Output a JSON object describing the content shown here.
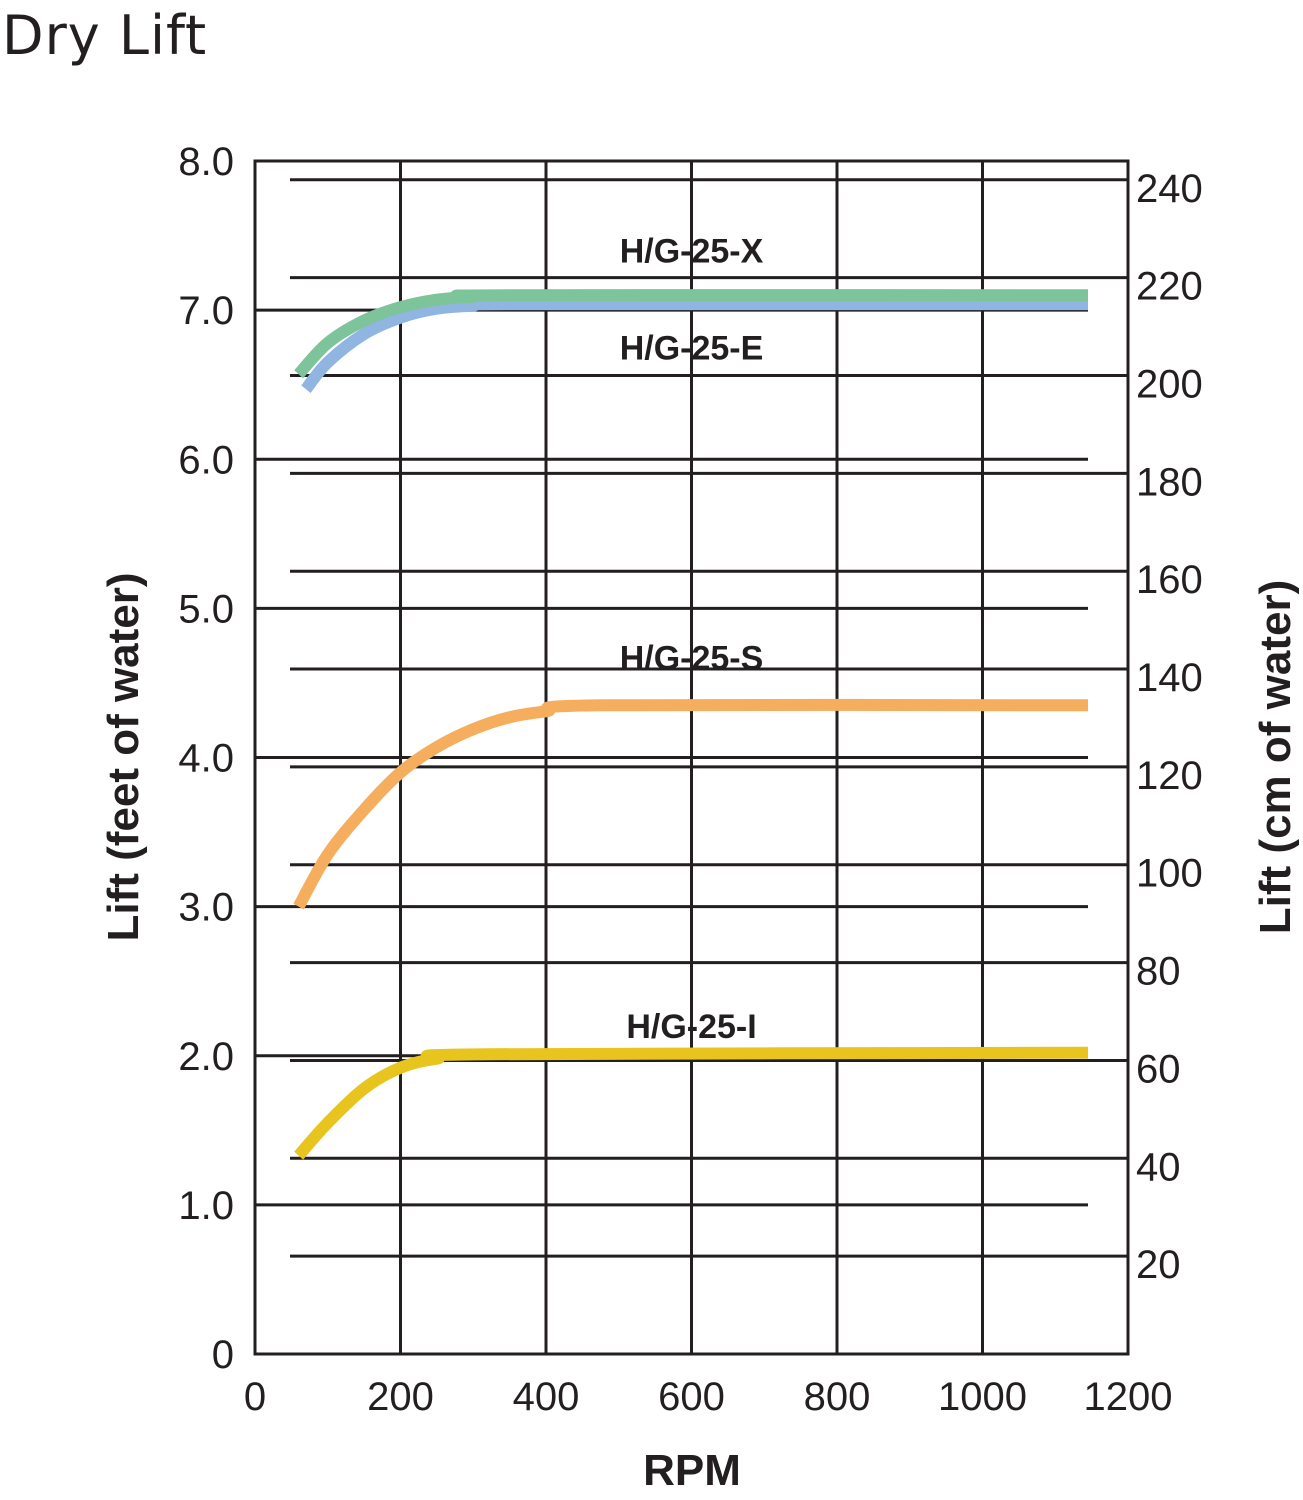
{
  "chart_data": {
    "type": "line",
    "title": "Dry Lift",
    "xlabel": "RPM",
    "ylabel": "Lift (feet of water)",
    "y2label": "Lift (cm of water)",
    "xlim": [
      0,
      1200
    ],
    "ylim": [
      0,
      8
    ],
    "xticks": [
      "0",
      "200",
      "400",
      "600",
      "800",
      "1000",
      "1200"
    ],
    "yticks": [
      "0",
      "1.0",
      "2.0",
      "3.0",
      "4.0",
      "5.0",
      "6.0",
      "7.0",
      "8.0"
    ],
    "y2ticks": [
      "20",
      "40",
      "60",
      "80",
      "100",
      "120",
      "140",
      "160",
      "180",
      "200",
      "220",
      "240"
    ],
    "grid": true,
    "series": [
      {
        "name": "H/G-25-E",
        "color": "#8fb5e0",
        "label_at": [
          600,
          6.75
        ],
        "points": [
          [
            70,
            6.47
          ],
          [
            100,
            6.65
          ],
          [
            150,
            6.84
          ],
          [
            200,
            6.95
          ],
          [
            250,
            7.01
          ],
          [
            300,
            7.03
          ],
          [
            350,
            7.04
          ],
          [
            1145,
            7.04
          ]
        ]
      },
      {
        "name": "H/G-25-X",
        "color": "#7dc49a",
        "label_at": [
          600,
          7.4
        ],
        "points": [
          [
            60,
            6.57
          ],
          [
            100,
            6.78
          ],
          [
            150,
            6.93
          ],
          [
            200,
            7.02
          ],
          [
            250,
            7.07
          ],
          [
            300,
            7.09
          ],
          [
            350,
            7.1
          ],
          [
            1145,
            7.1
          ]
        ]
      },
      {
        "name": "H/G-25-S",
        "color": "#f5ad5e",
        "label_at": [
          600,
          4.67
        ],
        "points": [
          [
            60,
            3.0
          ],
          [
            100,
            3.35
          ],
          [
            150,
            3.65
          ],
          [
            200,
            3.9
          ],
          [
            250,
            4.07
          ],
          [
            300,
            4.19
          ],
          [
            350,
            4.27
          ],
          [
            400,
            4.31
          ],
          [
            480,
            4.35
          ],
          [
            1145,
            4.35
          ]
        ]
      },
      {
        "name": "H/G-25-I",
        "color": "#e8c51e",
        "label_at": [
          600,
          2.2
        ],
        "points": [
          [
            60,
            1.33
          ],
          [
            100,
            1.55
          ],
          [
            150,
            1.78
          ],
          [
            200,
            1.92
          ],
          [
            250,
            1.98
          ],
          [
            320,
            2.01
          ],
          [
            1145,
            2.02
          ]
        ]
      }
    ]
  }
}
